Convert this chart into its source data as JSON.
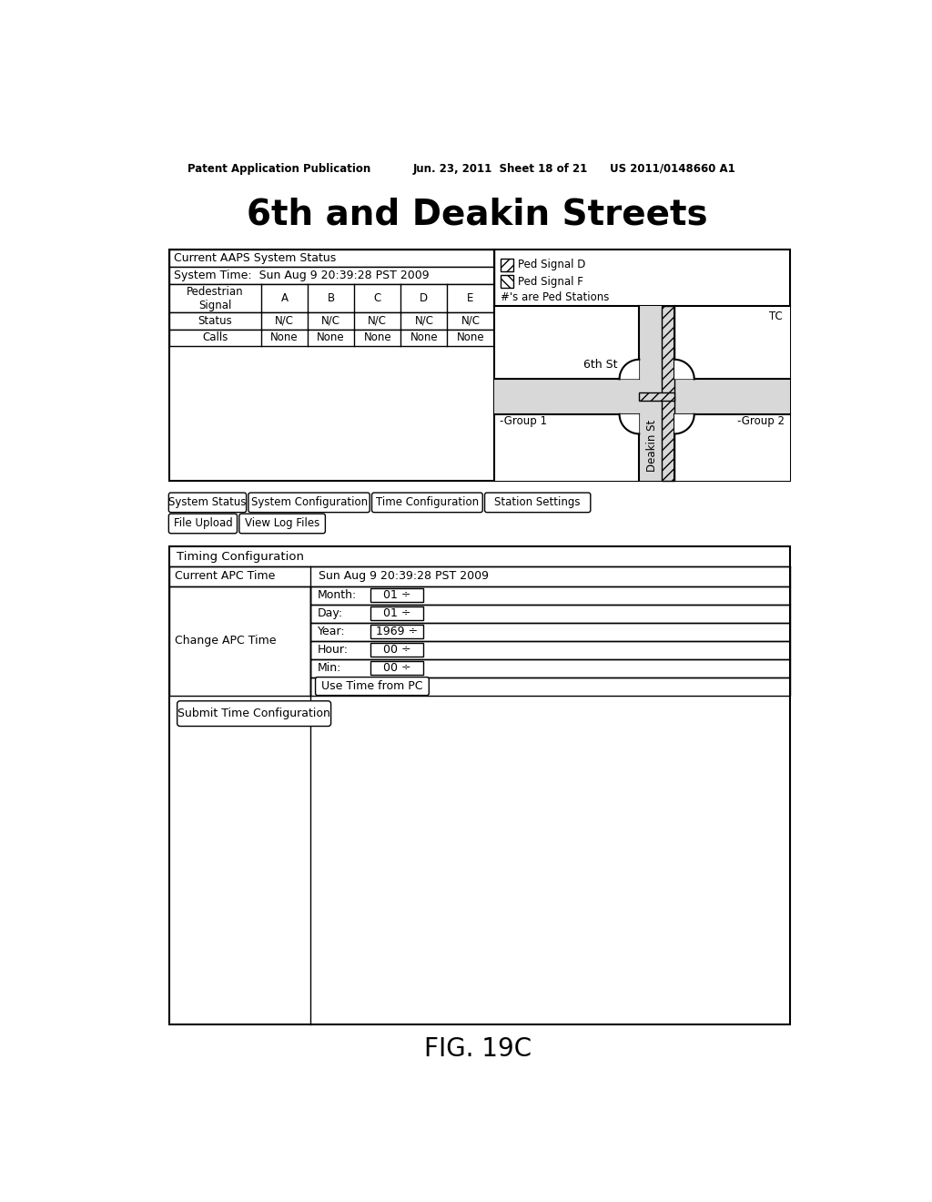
{
  "bg_color": "#ffffff",
  "header_left": "Patent Application Publication",
  "header_mid": "Jun. 23, 2011  Sheet 18 of 21",
  "header_right": "US 2011/0148660 A1",
  "title": "6th and Deakin Streets",
  "fig_label": "FIG. 19C",
  "top_box": {
    "system_status_label": "Current AAPS System Status",
    "system_time_label": "System Time:  Sun Aug 9 20:39:28 PST 2009",
    "table_headers": [
      "Pedestrian\nSignal",
      "A",
      "B",
      "C",
      "D",
      "E"
    ],
    "status_row": [
      "Status",
      "N/C",
      "N/C",
      "N/C",
      "N/C",
      "N/C"
    ],
    "calls_row": [
      "Calls",
      "None",
      "None",
      "None",
      "None",
      "None"
    ],
    "legend_lines": [
      "Ped Signal D",
      "Ped Signal F",
      "#'s are Ped Stations"
    ]
  },
  "nav_buttons_row1": [
    "System Status",
    "System Configuration",
    "Time Configuration",
    "Station Settings"
  ],
  "nav_buttons_row2": [
    "File Upload",
    "View Log Files"
  ],
  "timing_box": {
    "title": "Timing Configuration",
    "current_label": "Current APC Time",
    "current_value": "Sun Aug 9 20:39:28 PST 2009",
    "change_label": "Change APC Time",
    "fields": [
      [
        "Month:",
        "01 ÷"
      ],
      [
        "Day:",
        "01 ÷"
      ],
      [
        "Year:",
        "1969 ÷"
      ],
      [
        "Hour:",
        "00 ÷"
      ],
      [
        "Min:",
        "00 ÷"
      ]
    ],
    "button_use_time": "Use Time from PC",
    "button_submit": "Submit Time Configuration"
  }
}
